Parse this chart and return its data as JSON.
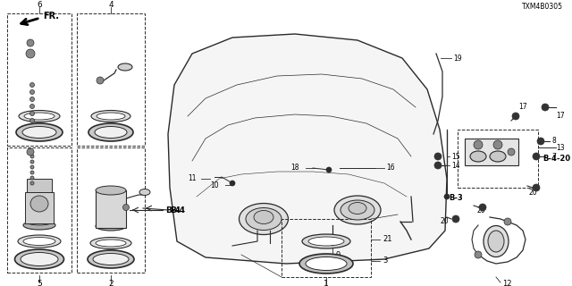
{
  "background_color": "#ffffff",
  "diagram_code": "TXM4B0305",
  "line_color": "#2a2a2a",
  "text_color": "#000000",
  "fig_width": 6.4,
  "fig_height": 3.2,
  "dpi": 100
}
